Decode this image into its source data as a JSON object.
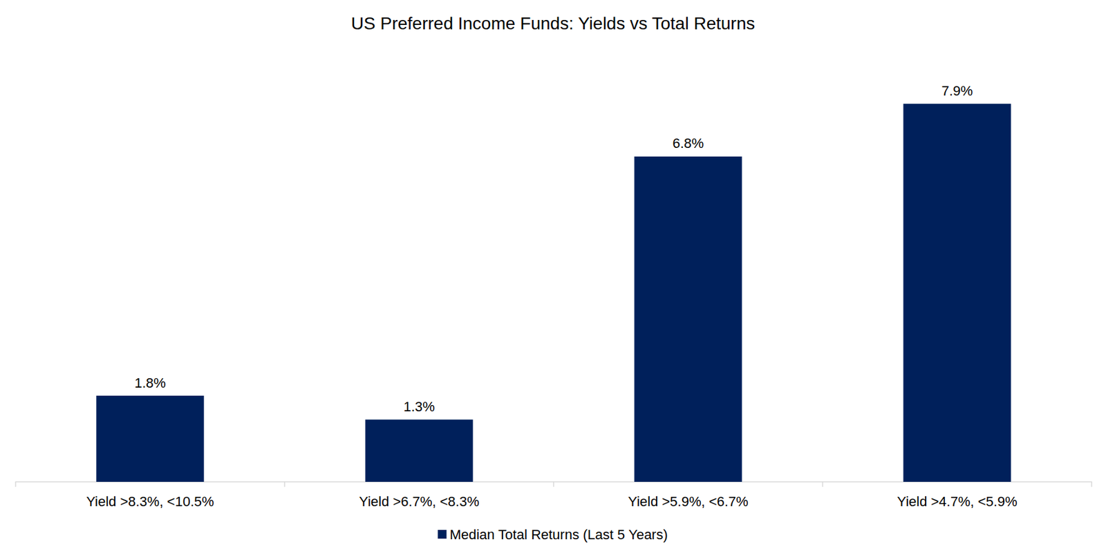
{
  "chart_data": {
    "type": "bar",
    "title": "US Preferred Income Funds: Yields vs Total Returns",
    "categories": [
      "Yield >8.3%, <10.5%",
      "Yield >6.7%, <8.3%",
      "Yield >5.9%, <6.7%",
      "Yield >4.7%, <5.9%"
    ],
    "series": [
      {
        "name": "Median Total Returns (Last 5 Years)",
        "color": "#00205b",
        "values": [
          1.8,
          1.3,
          6.8,
          7.9
        ],
        "value_labels": [
          "1.8%",
          "1.3%",
          "6.8%",
          "7.9%"
        ]
      }
    ],
    "ylim": [
      0,
      9
    ],
    "grid": false,
    "legend": "bottom",
    "data_labels": true,
    "tick_labels": "x"
  }
}
